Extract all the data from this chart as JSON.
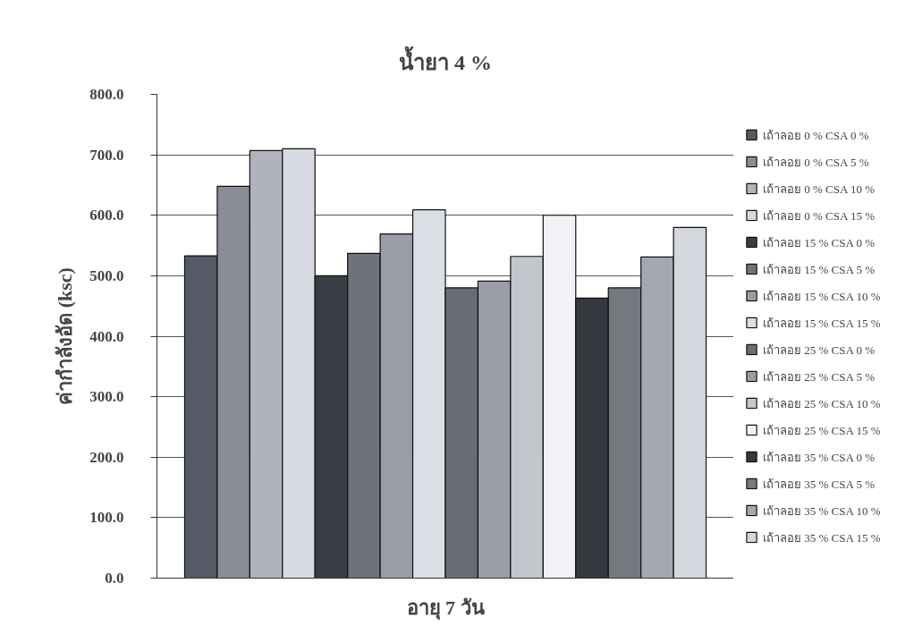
{
  "chart_data": {
    "type": "bar",
    "title": "น้ำยา 4 %",
    "xlabel": "อายุ 7 วัน",
    "ylabel": "ค่ากำลังอัด (ksc)",
    "categories": [
      null
    ],
    "series": [
      {
        "name": "เถ้าลอย 0 % CSA 0 %",
        "color": "#555a66",
        "values": [
          533
        ]
      },
      {
        "name": "เถ้าลอย 0 % CSA 5 %",
        "color": "#8a8d96",
        "values": [
          648
        ]
      },
      {
        "name": "เถ้าลอย 0 % CSA 10 %",
        "color": "#b0b3bd",
        "values": [
          707
        ]
      },
      {
        "name": "เถ้าลอย 0 % CSA 15 %",
        "color": "#d8dae2",
        "values": [
          710
        ]
      },
      {
        "name": "เถ้าลอย 15 % CSA 0 %",
        "color": "#3a3d45",
        "values": [
          500
        ]
      },
      {
        "name": "เถ้าลอย 15 % CSA 5 %",
        "color": "#6f727b",
        "values": [
          537
        ]
      },
      {
        "name": "เถ้าลอย 15 % CSA 10 %",
        "color": "#9a9da6",
        "values": [
          569
        ]
      },
      {
        "name": "เถ้าลอย 15 % CSA 15 %",
        "color": "#dcdee6",
        "values": [
          609
        ]
      },
      {
        "name": "เถ้าลอย 25 % CSA 0 %",
        "color": "#6a6d76",
        "values": [
          480
        ]
      },
      {
        "name": "เถ้าลอย 25 % CSA 5 %",
        "color": "#9a9da6",
        "values": [
          491
        ]
      },
      {
        "name": "เถ้าลอย 25 % CSA 10 %",
        "color": "#c4c6ce",
        "values": [
          532
        ]
      },
      {
        "name": "เถ้าลอย 25 % CSA 15 %",
        "color": "#f2f2f6",
        "values": [
          600
        ]
      },
      {
        "name": "เถ้าลอย 35 % CSA 0 %",
        "color": "#35383f",
        "values": [
          463
        ]
      },
      {
        "name": "เถ้าลอย 35 % CSA 5 %",
        "color": "#75787f",
        "values": [
          480
        ]
      },
      {
        "name": "เถ้าลอย 35 % CSA 10 %",
        "color": "#a5a8b0",
        "values": [
          531
        ]
      },
      {
        "name": "เถ้าลอย 35 % CSA 15 %",
        "color": "#d5d7df",
        "values": [
          580
        ]
      }
    ],
    "ylim": [
      0,
      800
    ],
    "yticks": [
      {
        "value": 0,
        "label": "0.0"
      },
      {
        "value": 100,
        "label": "100.0"
      },
      {
        "value": 200,
        "label": "200.0"
      },
      {
        "value": 300,
        "label": "300.0"
      },
      {
        "value": 400,
        "label": "400.0"
      },
      {
        "value": 500,
        "label": "500.0"
      },
      {
        "value": 600,
        "label": "600.0"
      },
      {
        "value": 700,
        "label": "700.0"
      },
      {
        "value": 800,
        "label": "800.0"
      }
    ],
    "grid": "y",
    "legend": "right"
  }
}
